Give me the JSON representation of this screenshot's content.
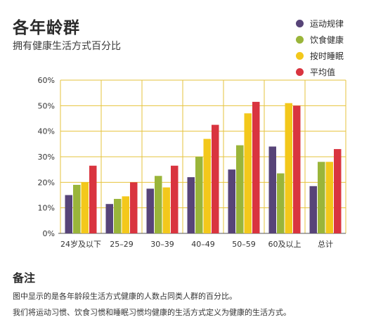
{
  "header": {
    "title": "各年龄群",
    "subtitle": "拥有健康生活方式百分比"
  },
  "legend": [
    {
      "label": "运动规律",
      "color": "#574478"
    },
    {
      "label": "饮食健康",
      "color": "#9ab53a"
    },
    {
      "label": "按时睡眠",
      "color": "#f3c81b"
    },
    {
      "label": "平均值",
      "color": "#d9343f"
    }
  ],
  "chart_data": {
    "type": "bar",
    "categories": [
      "24岁及以下",
      "25–29",
      "30–39",
      "40–49",
      "50–59",
      "60及以上",
      "总计"
    ],
    "series": [
      {
        "name": "运动规律",
        "color": "#574478",
        "values": [
          15,
          11.5,
          17.5,
          22,
          25,
          34,
          18.5
        ]
      },
      {
        "name": "饮食健康",
        "color": "#9ab53a",
        "values": [
          19,
          13.5,
          22.5,
          30,
          34.5,
          23.5,
          28
        ]
      },
      {
        "name": "按时睡眠",
        "color": "#f3c81b",
        "values": [
          20,
          14.5,
          18,
          37,
          47,
          51,
          28
        ]
      },
      {
        "name": "平均值",
        "color": "#d9343f",
        "values": [
          26.5,
          20,
          26.5,
          42.5,
          51.5,
          50,
          33
        ]
      }
    ],
    "yticks": [
      "0%",
      "10%",
      "20%",
      "30%",
      "40%",
      "50%",
      "60%"
    ],
    "ylim": [
      0,
      60
    ],
    "grid": true
  },
  "notes": {
    "title": "备注",
    "lines": [
      "图中显示的是各年龄段生活方式健康的人数占同类人群的百分比。",
      "我们将运动习惯、饮食习惯和睡眠习惯均健康的生活方式定义为健康的生活方式。"
    ]
  }
}
